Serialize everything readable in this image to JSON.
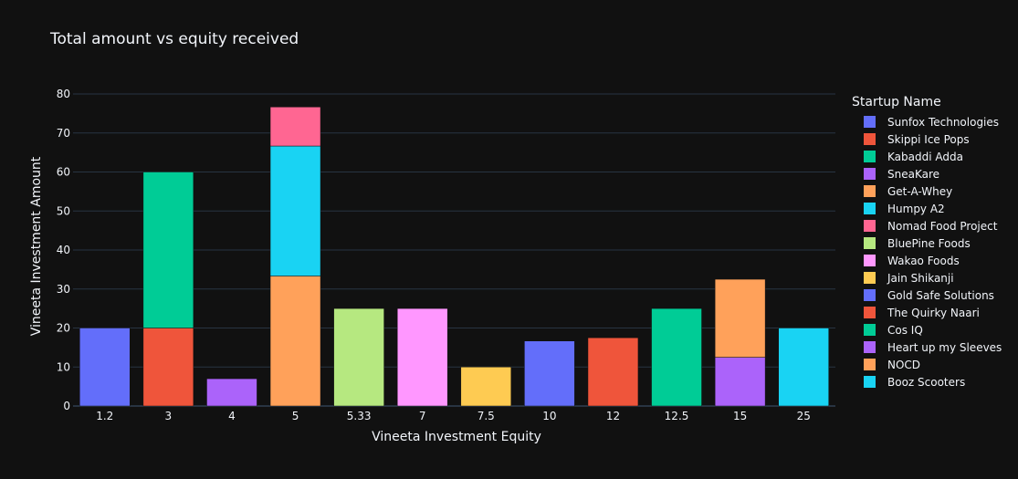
{
  "chart_data": {
    "type": "bar",
    "barmode": "stack",
    "title": "Total amount vs equity received",
    "xlabel": "Vineeta Investment Equity",
    "ylabel": "Vineeta Investment Amount",
    "ylim": [
      0,
      80
    ],
    "yticks": [
      0,
      10,
      20,
      30,
      40,
      50,
      60,
      70,
      80
    ],
    "categories": [
      "1.2",
      "3",
      "4",
      "5",
      "5.33",
      "7",
      "7.5",
      "10",
      "12",
      "12.5",
      "15",
      "25"
    ],
    "legend_title": "Startup Name",
    "legend_position": "right",
    "grid": true,
    "series": [
      {
        "name": "Sunfox Technologies",
        "color": "#636efa",
        "x": "1.2",
        "value": 20
      },
      {
        "name": "Skippi Ice Pops",
        "color": "#ef553b",
        "x": "3",
        "value": 20
      },
      {
        "name": "Kabaddi Adda",
        "color": "#00cc96",
        "x": "3",
        "value": 40
      },
      {
        "name": "SneaKare",
        "color": "#ab63fa",
        "x": "4",
        "value": 7
      },
      {
        "name": "Get-A-Whey",
        "color": "#ffa15a",
        "x": "5",
        "value": 33.33
      },
      {
        "name": "Humpy A2",
        "color": "#19d3f3",
        "x": "5",
        "value": 33.33
      },
      {
        "name": "Nomad Food Project",
        "color": "#ff6692",
        "x": "5",
        "value": 10
      },
      {
        "name": "BluePine Foods",
        "color": "#b6e880",
        "x": "5.33",
        "value": 25
      },
      {
        "name": "Wakao Foods",
        "color": "#ff97ff",
        "x": "7",
        "value": 25
      },
      {
        "name": "Jain Shikanji",
        "color": "#fecb52",
        "x": "7.5",
        "value": 10
      },
      {
        "name": "Gold Safe Solutions",
        "color": "#636efa",
        "x": "10",
        "value": 16.67
      },
      {
        "name": "The Quirky Naari",
        "color": "#ef553b",
        "x": "12",
        "value": 17.5
      },
      {
        "name": "Cos IQ",
        "color": "#00cc96",
        "x": "12.5",
        "value": 25
      },
      {
        "name": "Heart up my Sleeves",
        "color": "#ab63fa",
        "x": "15",
        "value": 12.5
      },
      {
        "name": "NOCD",
        "color": "#ffa15a",
        "x": "15",
        "value": 20
      },
      {
        "name": "Booz Scooters",
        "color": "#19d3f3",
        "x": "25",
        "value": 20
      }
    ]
  }
}
